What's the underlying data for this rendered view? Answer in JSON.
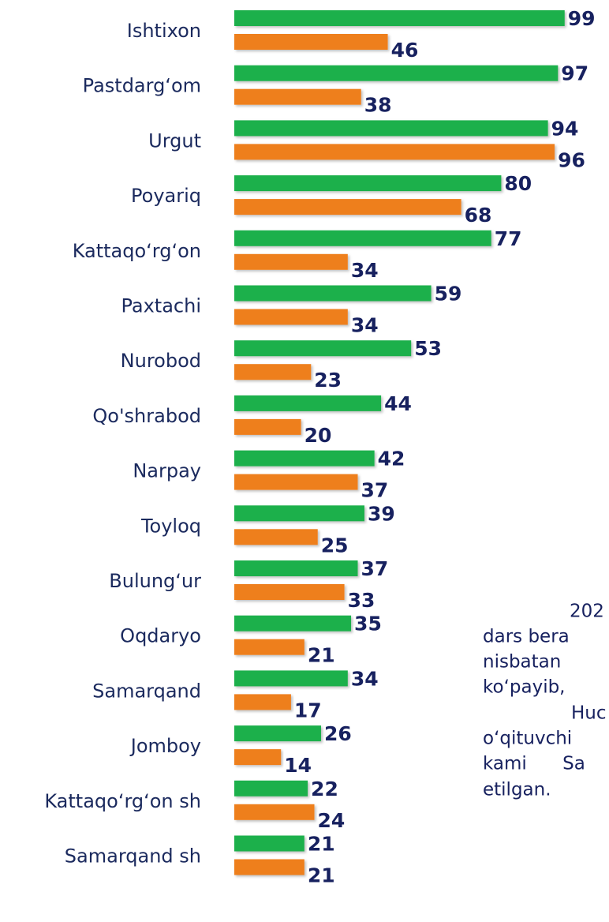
{
  "chart_data": {
    "type": "hbar",
    "categories": [
      "Ishtixon",
      "Pastdarg‘om",
      "Urgut",
      "Poyariq",
      "Kattaqo‘rg‘on",
      "Paxtachi",
      "Nurobod",
      "Qo'shrabod",
      "Narpay",
      "Toyloq",
      "Bulung‘ur",
      "Oqdaryo",
      "Samarqand",
      "Jomboy",
      "Kattaqo‘rg‘on sh",
      "Samarqand sh"
    ],
    "series": [
      {
        "color": "#1fb04b",
        "values": [
          99,
          97,
          94,
          80,
          77,
          59,
          53,
          44,
          42,
          39,
          37,
          35,
          34,
          26,
          22,
          21
        ]
      },
      {
        "color": "#ee7f1f",
        "values": [
          46,
          38,
          96,
          68,
          34,
          34,
          23,
          20,
          37,
          25,
          33,
          21,
          17,
          14,
          24,
          21
        ]
      }
    ],
    "xlim": [
      0,
      100
    ],
    "annotations": [
      "202",
      "dars bera",
      "nisbatan",
      "ko‘payib,",
      "Huc",
      "o‘qituvchi",
      "kami Sa",
      "etilgan."
    ]
  }
}
